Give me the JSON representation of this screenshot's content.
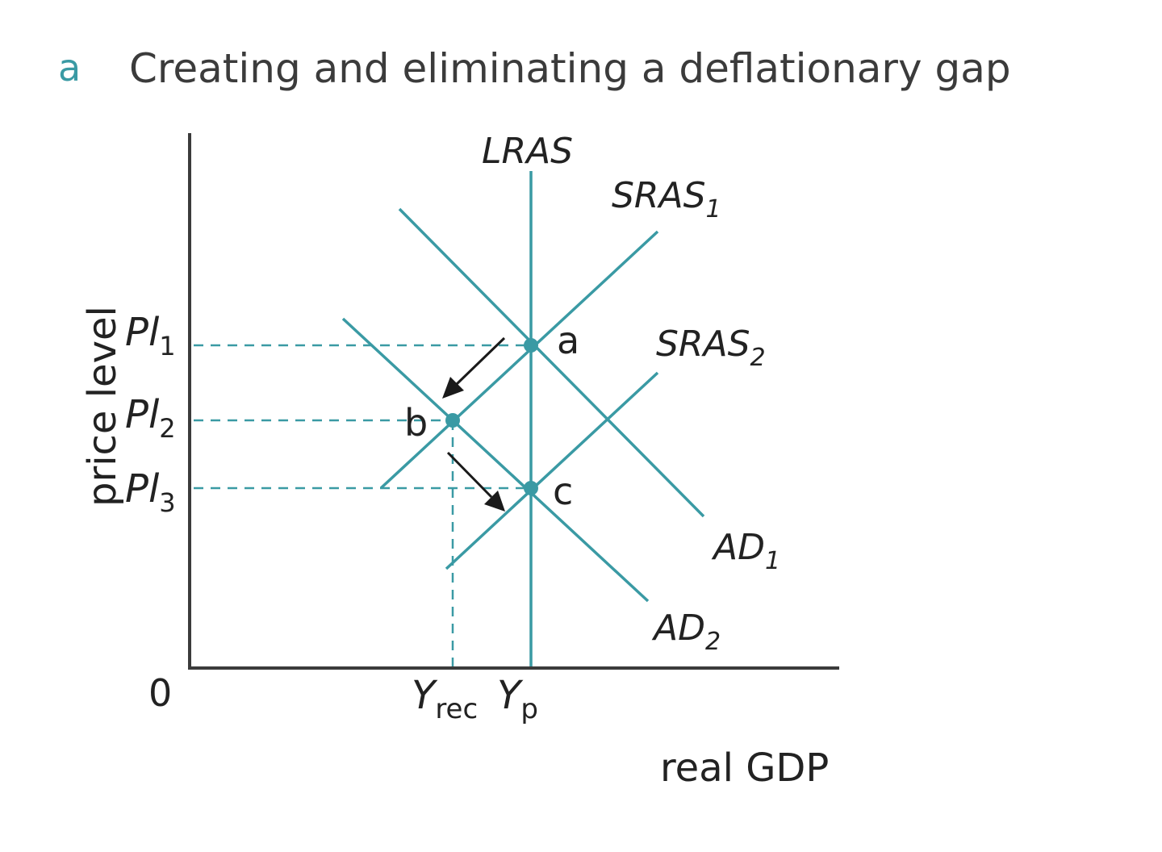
{
  "title": {
    "letter": "a",
    "text": "Creating and eliminating a deflationary gap"
  },
  "axes": {
    "x_title": "real GDP",
    "y_title": "price level",
    "origin": "0"
  },
  "ticks": {
    "y": [
      {
        "base": "Pl",
        "sub": "1"
      },
      {
        "base": "Pl",
        "sub": "2"
      },
      {
        "base": "Pl",
        "sub": "3"
      }
    ],
    "x": [
      {
        "base": "Y",
        "sub": "rec"
      },
      {
        "base": "Y",
        "sub": "p"
      }
    ]
  },
  "curves": {
    "lras": {
      "base": "LRAS",
      "sub": ""
    },
    "sras1": {
      "base": "SRAS",
      "sub": "1"
    },
    "sras2": {
      "base": "SRAS",
      "sub": "2"
    },
    "ad1": {
      "base": "AD",
      "sub": "1"
    },
    "ad2": {
      "base": "AD",
      "sub": "2"
    }
  },
  "points": {
    "a": "a",
    "b": "b",
    "c": "c"
  },
  "colors": {
    "accent": "#3a9aa4",
    "text": "#222222",
    "axis": "#3b3b3b"
  }
}
